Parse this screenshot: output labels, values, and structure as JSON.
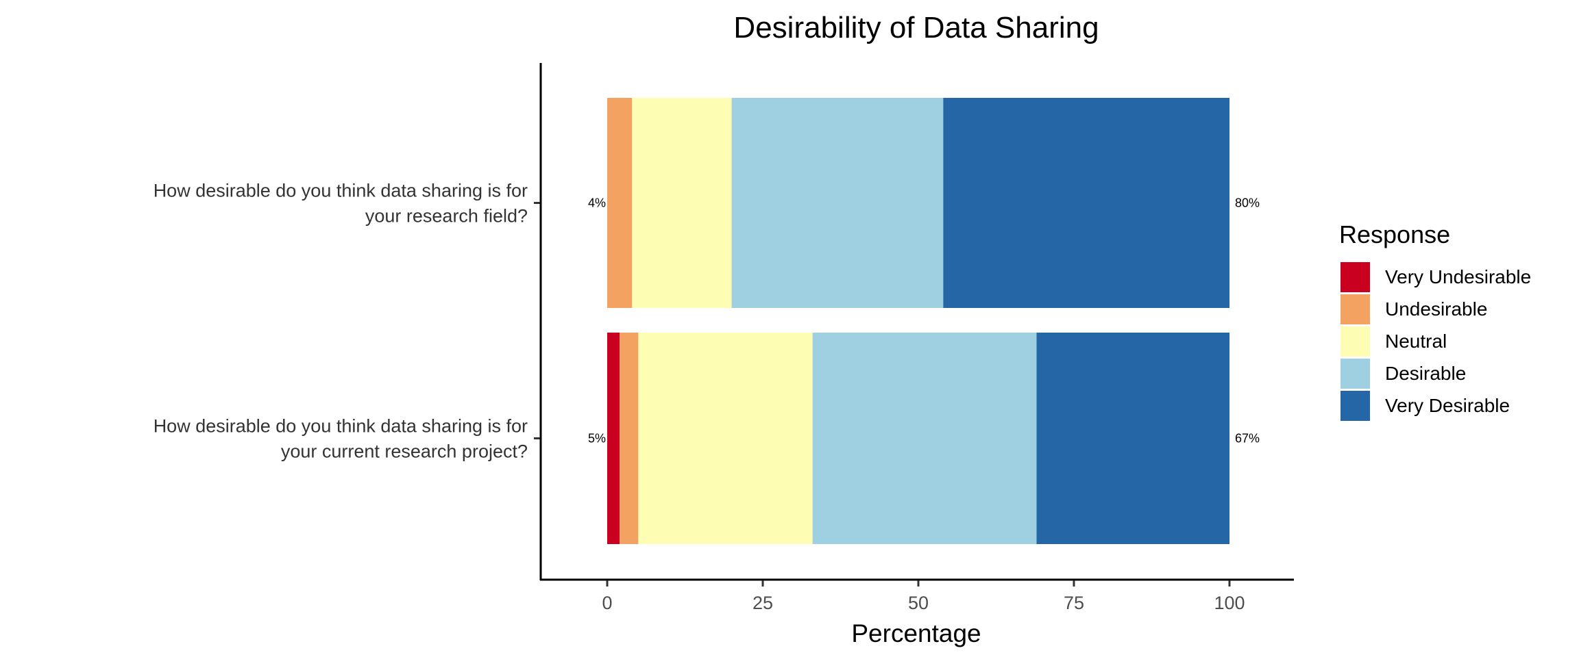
{
  "chart_data": {
    "type": "bar",
    "orientation": "horizontal",
    "stacked": true,
    "title": "Desirability of Data Sharing",
    "xlabel": "Percentage",
    "ylabel": "",
    "xlim": [
      -10,
      110
    ],
    "xticks": [
      0,
      25,
      50,
      75,
      100
    ],
    "xtick_labels": [
      "0",
      "25",
      "50",
      "75",
      "100"
    ],
    "categories": [
      [
        "How desirable do you think data sharing is for",
        "your research field?"
      ],
      [
        "How desirable do you think data sharing is for",
        "your current research project?"
      ]
    ],
    "series": [
      {
        "name": "Very Undesirable",
        "color": "#ca0020",
        "values": [
          0,
          2
        ]
      },
      {
        "name": "Undesirable",
        "color": "#f4a261",
        "values": [
          4,
          3
        ]
      },
      {
        "name": "Neutral",
        "color": "#fdfdb3",
        "values": [
          16,
          28
        ]
      },
      {
        "name": "Desirable",
        "color": "#9ed0e2",
        "values": [
          34,
          36
        ]
      },
      {
        "name": "Very Desirable",
        "color": "#2566a7",
        "values": [
          46,
          31
        ]
      }
    ],
    "left_labels": [
      "4%",
      "5%"
    ],
    "right_labels": [
      "80%",
      "67%"
    ],
    "legend": {
      "title": "Response",
      "position": "right"
    },
    "grid": false
  }
}
